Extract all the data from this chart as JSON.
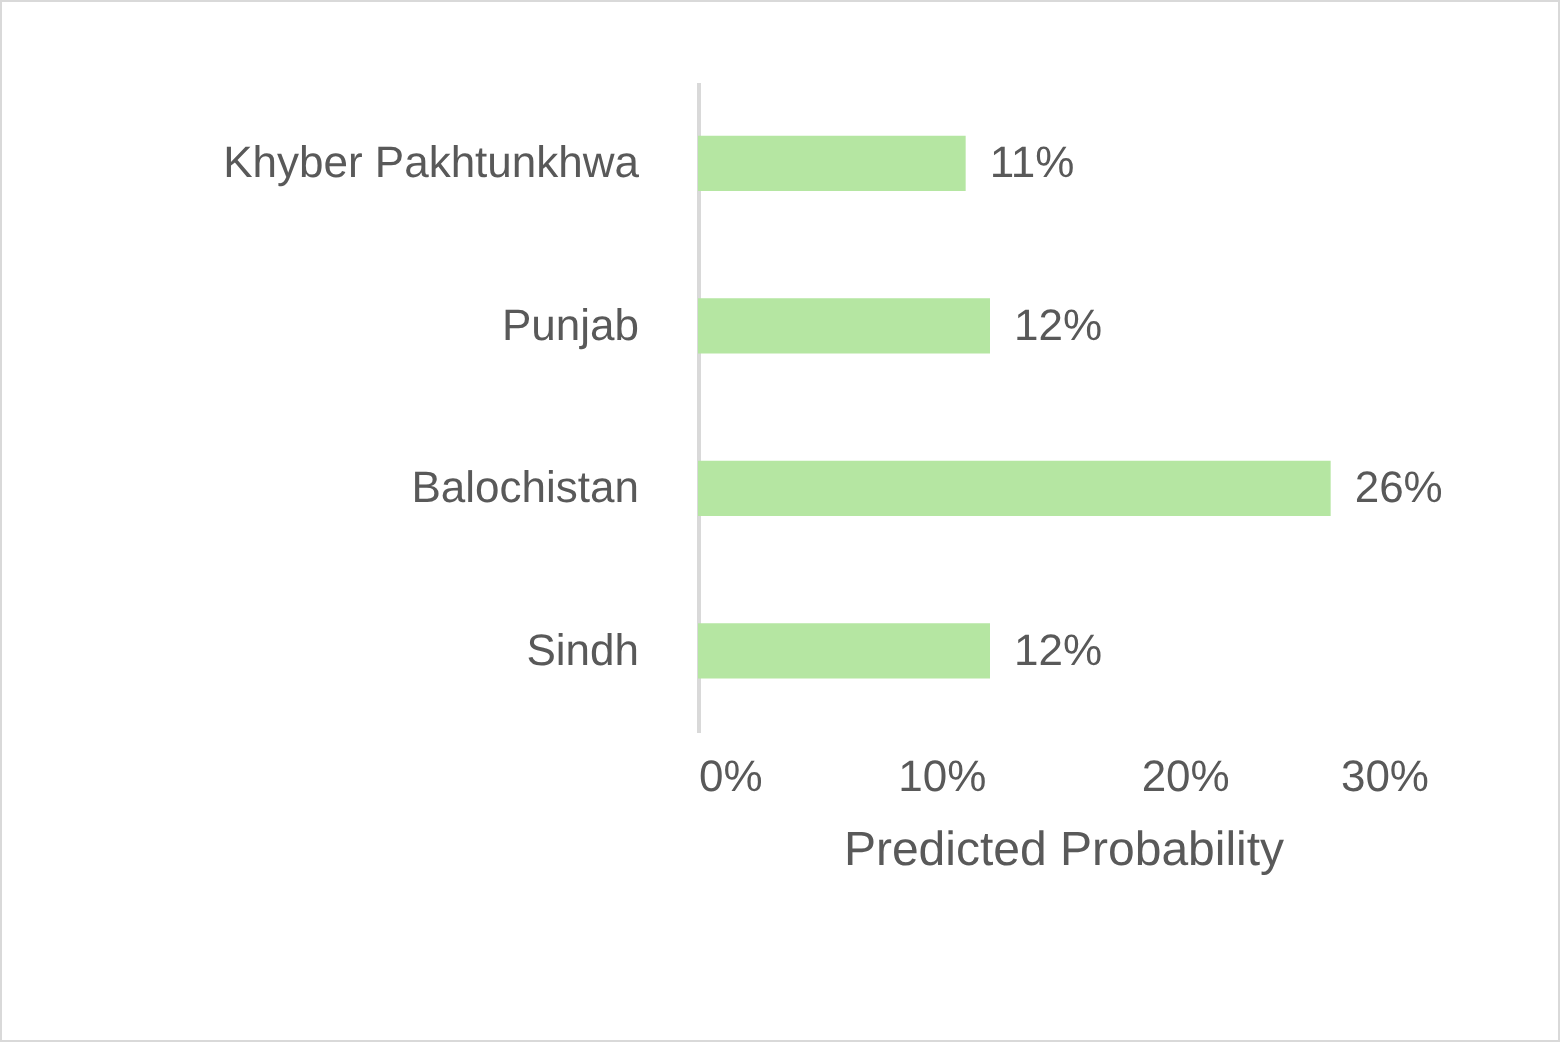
{
  "chart_data": {
    "type": "bar",
    "orientation": "horizontal",
    "xlabel": "Predicted Probability",
    "categories": [
      "Khyber Pakhtunkhwa",
      "Punjab",
      "Balochistan",
      "Sindh"
    ],
    "values": [
      11,
      12,
      26,
      12
    ],
    "value_labels": [
      "11%",
      "12%",
      "26%",
      "12%"
    ],
    "color": "#b5e6a2",
    "xlim": [
      0,
      30
    ],
    "xticks": [
      {
        "value": 0,
        "label": "0%"
      },
      {
        "value": 10,
        "label": "10%"
      },
      {
        "value": 20,
        "label": "20%"
      },
      {
        "value": 30,
        "label": "30%"
      }
    ],
    "grid": false
  }
}
